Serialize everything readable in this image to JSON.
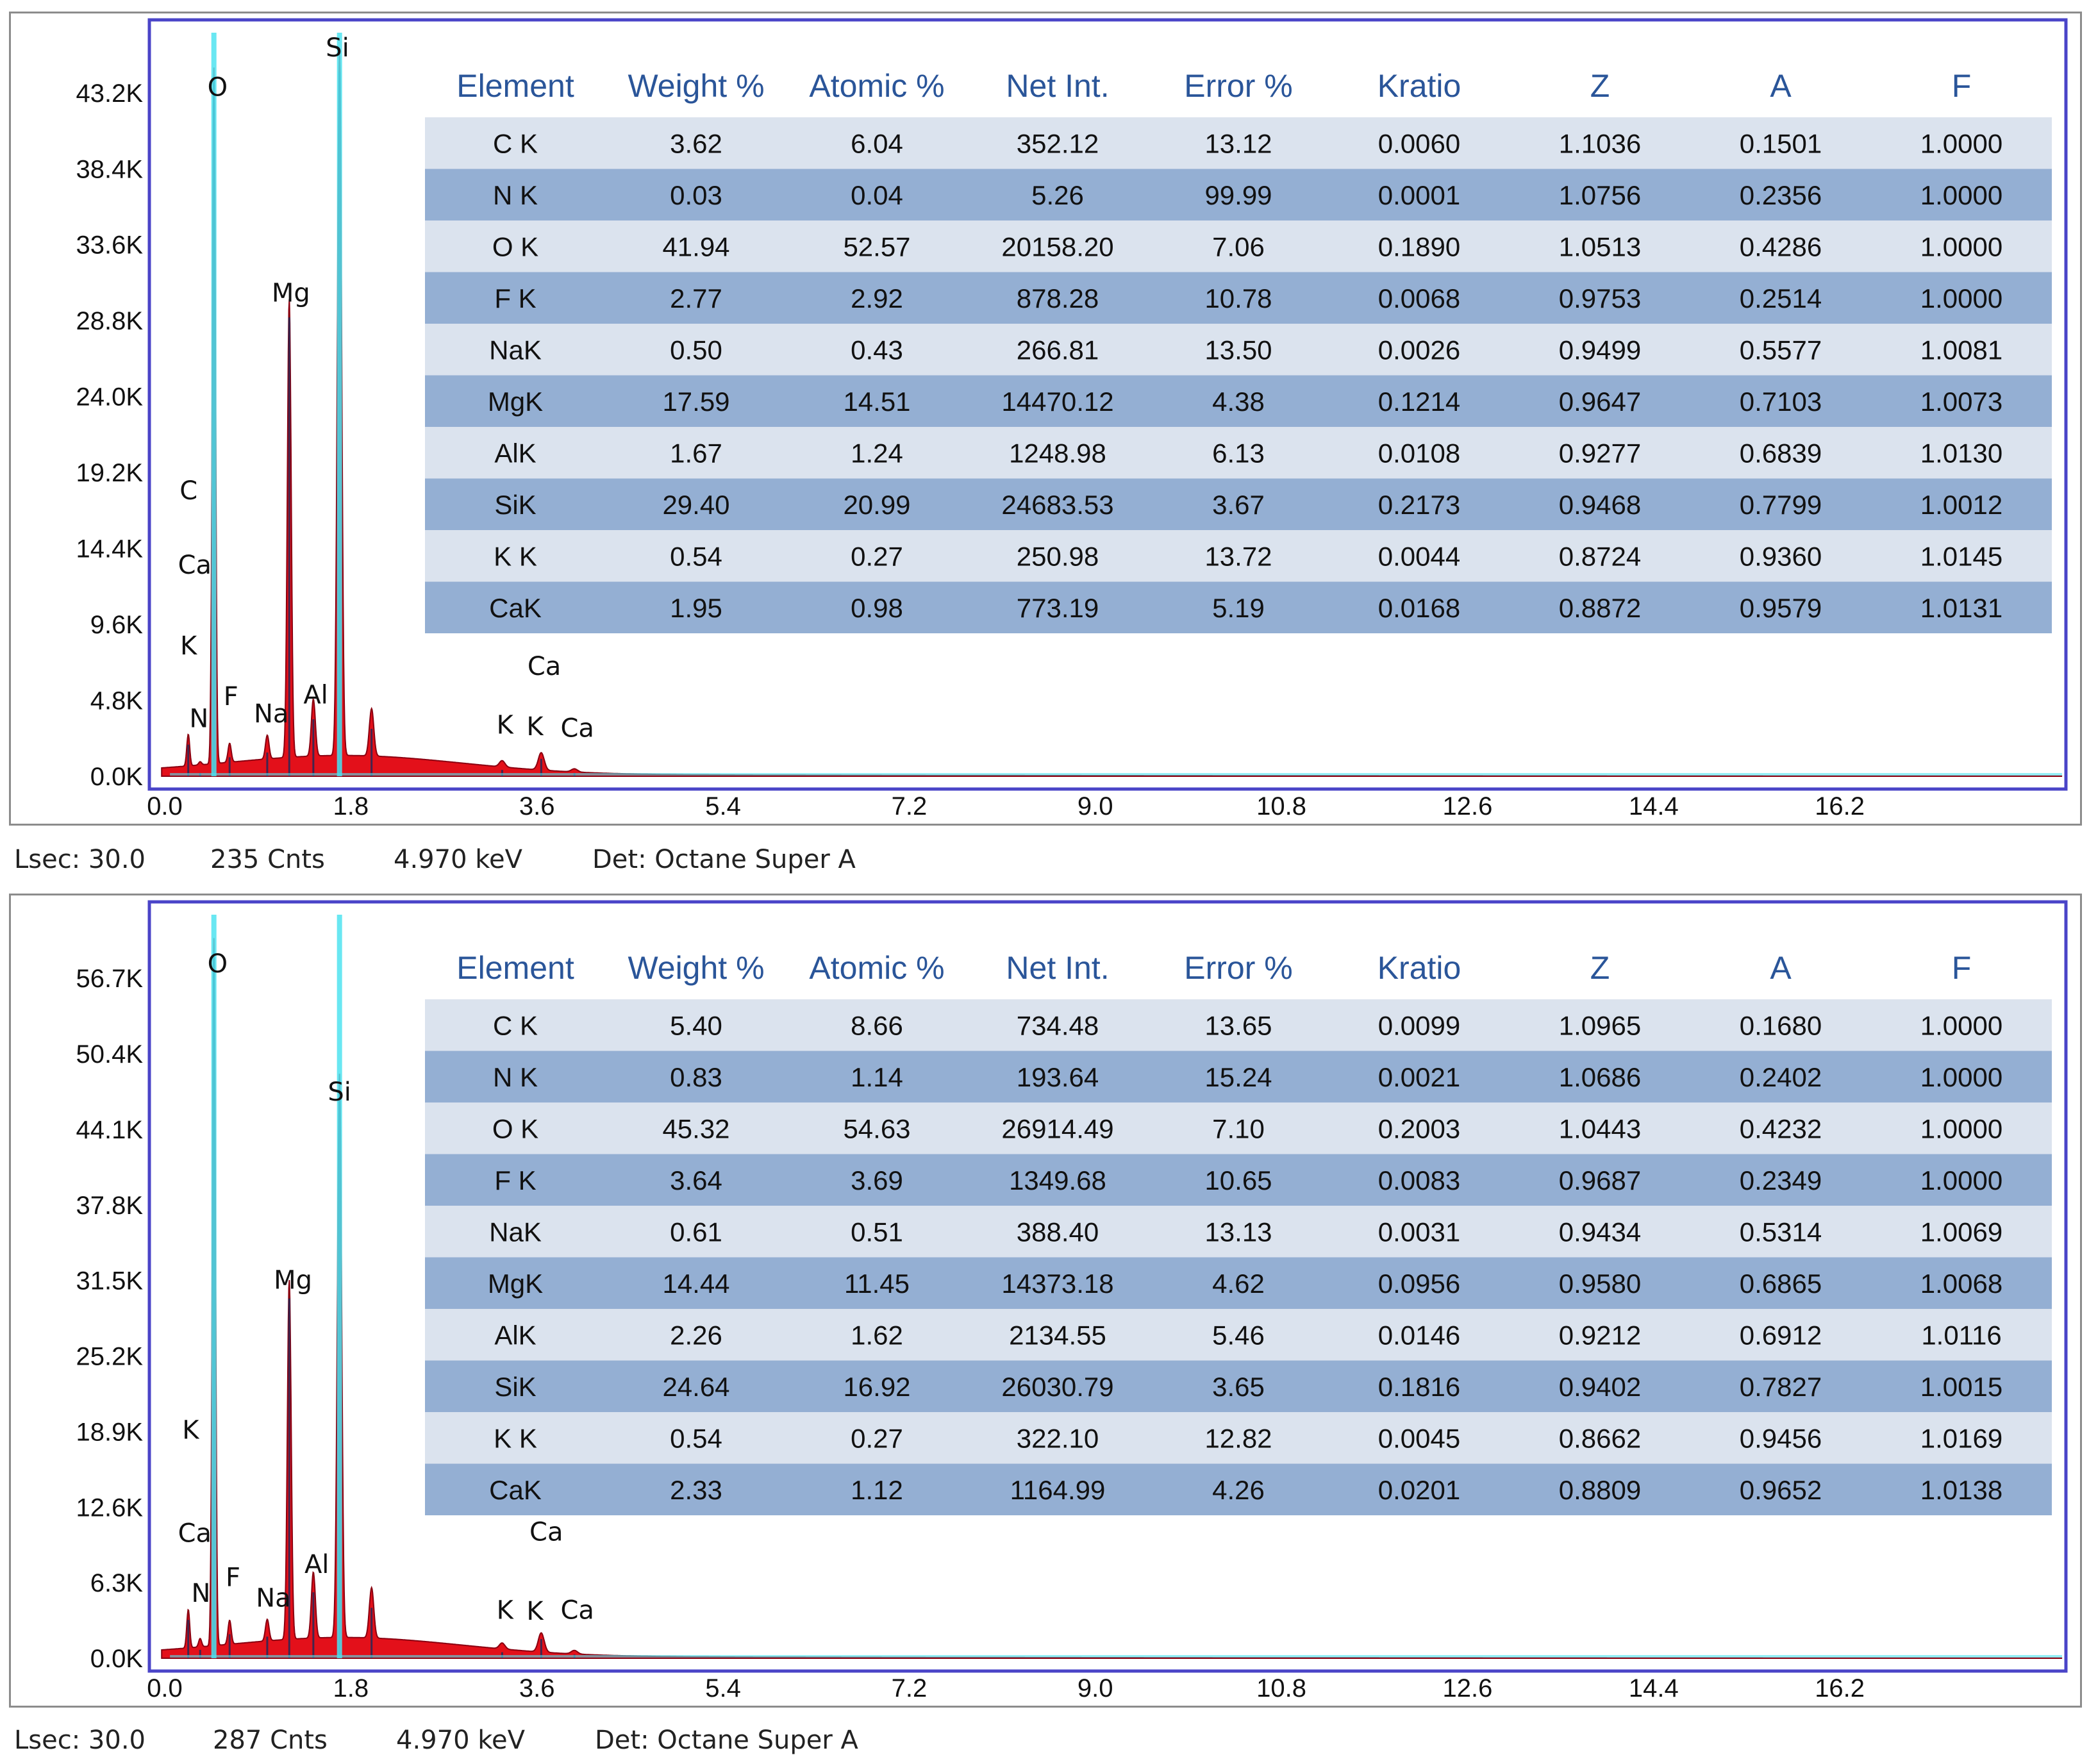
{
  "table_columns": [
    "Element",
    "Weight %",
    "Atomic %",
    "Net Int.",
    "Error %",
    "Kratio",
    "Z",
    "A",
    "F"
  ],
  "colors": {
    "header_text": "#2a5599",
    "row_light": "#dbe3ee",
    "row_dark": "#94afd3",
    "frame": "#4a44c8",
    "peak_fill": "#e3101a",
    "peak_edge": "#8a0010",
    "spectrum_line": "#1c2a5a",
    "marker": "#4fe3f0",
    "background_fill": "#2a3a78"
  },
  "chart_data": [
    {
      "type": "table",
      "title": "",
      "xlabel": "",
      "ylabel": "",
      "x_ticks": [
        "0.0",
        "1.8",
        "3.6",
        "5.4",
        "7.2",
        "9.0",
        "10.8",
        "12.6",
        "14.4",
        "16.2"
      ],
      "y_ticks": [
        "0.0K",
        "4.8K",
        "9.6K",
        "14.4K",
        "19.2K",
        "24.0K",
        "28.8K",
        "33.6K",
        "38.4K",
        "43.2K"
      ],
      "xlim": [
        0,
        18.4
      ],
      "ylim": [
        0,
        47000
      ],
      "grid": false,
      "spectrum_peaks": [
        {
          "element": "C",
          "x": 0.277,
          "y": 2000
        },
        {
          "element": "N",
          "x": 0.392,
          "y": 200
        },
        {
          "element": "O",
          "x": 0.525,
          "y": 44000
        },
        {
          "element": "F",
          "x": 0.677,
          "y": 1200
        },
        {
          "element": "Na",
          "x": 1.041,
          "y": 1500
        },
        {
          "element": "Mg",
          "x": 1.254,
          "y": 29000
        },
        {
          "element": "Al",
          "x": 1.487,
          "y": 3600
        },
        {
          "element": "Si",
          "x": 1.74,
          "y": 44500
        },
        {
          "element": "Si-sum",
          "x": 2.05,
          "y": 3000
        },
        {
          "element": "K",
          "x": 3.313,
          "y": 400
        },
        {
          "element": "Ca",
          "x": 3.691,
          "y": 1100
        },
        {
          "element": "Ca-kb",
          "x": 4.012,
          "y": 200
        }
      ],
      "peak_labels": [
        {
          "text": "O",
          "x": 0.56,
          "y": 43000
        },
        {
          "text": "Si",
          "x": 1.72,
          "y": 45500
        },
        {
          "text": "Mg",
          "x": 1.27,
          "y": 30000
        },
        {
          "text": "C",
          "x": 0.28,
          "y": 17500
        },
        {
          "text": "Ca",
          "x": 0.34,
          "y": 12800
        },
        {
          "text": "K",
          "x": 0.28,
          "y": 7700
        },
        {
          "text": "N",
          "x": 0.38,
          "y": 3100
        },
        {
          "text": "F",
          "x": 0.69,
          "y": 4500
        },
        {
          "text": "Na",
          "x": 1.08,
          "y": 3400
        },
        {
          "text": "Al",
          "x": 1.51,
          "y": 4600
        },
        {
          "text": "Ca",
          "x": 3.72,
          "y": 6400
        },
        {
          "text": "K",
          "x": 3.34,
          "y": 2700
        },
        {
          "text": "K",
          "x": 3.63,
          "y": 2600
        },
        {
          "text": "Ca",
          "x": 4.04,
          "y": 2500
        }
      ],
      "table": [
        [
          "C K",
          "3.62",
          "6.04",
          "352.12",
          "13.12",
          "0.0060",
          "1.1036",
          "0.1501",
          "1.0000"
        ],
        [
          "N K",
          "0.03",
          "0.04",
          "5.26",
          "99.99",
          "0.0001",
          "1.0756",
          "0.2356",
          "1.0000"
        ],
        [
          "O K",
          "41.94",
          "52.57",
          "20158.20",
          "7.06",
          "0.1890",
          "1.0513",
          "0.4286",
          "1.0000"
        ],
        [
          "F K",
          "2.77",
          "2.92",
          "878.28",
          "10.78",
          "0.0068",
          "0.9753",
          "0.2514",
          "1.0000"
        ],
        [
          "NaK",
          "0.50",
          "0.43",
          "266.81",
          "13.50",
          "0.0026",
          "0.9499",
          "0.5577",
          "1.0081"
        ],
        [
          "MgK",
          "17.59",
          "14.51",
          "14470.12",
          "4.38",
          "0.1214",
          "0.9647",
          "0.7103",
          "1.0073"
        ],
        [
          "AlK",
          "1.67",
          "1.24",
          "1248.98",
          "6.13",
          "0.0108",
          "0.9277",
          "0.6839",
          "1.0130"
        ],
        [
          "SiK",
          "29.40",
          "20.99",
          "24683.53",
          "3.67",
          "0.2173",
          "0.9468",
          "0.7799",
          "1.0012"
        ],
        [
          "K K",
          "0.54",
          "0.27",
          "250.98",
          "13.72",
          "0.0044",
          "0.8724",
          "0.9360",
          "1.0145"
        ],
        [
          "CaK",
          "1.95",
          "0.98",
          "773.19",
          "5.19",
          "0.0168",
          "0.8872",
          "0.9579",
          "1.0131"
        ]
      ],
      "status": {
        "lsec": "Lsec: 30.0",
        "cnts": "235 Cnts",
        "kev": "4.970 keV",
        "det": "Det: Octane Super A"
      }
    },
    {
      "type": "table",
      "title": "",
      "xlabel": "",
      "ylabel": "",
      "x_ticks": [
        "0.0",
        "1.8",
        "3.6",
        "5.4",
        "7.2",
        "9.0",
        "10.8",
        "12.6",
        "14.4",
        "16.2"
      ],
      "y_ticks": [
        "0.0K",
        "6.3K",
        "12.6K",
        "18.9K",
        "25.2K",
        "31.5K",
        "37.8K",
        "44.1K",
        "50.4K",
        "56.7K"
      ],
      "xlim": [
        0,
        18.4
      ],
      "ylim": [
        0,
        62000
      ],
      "grid": false,
      "spectrum_peaks": [
        {
          "element": "C",
          "x": 0.277,
          "y": 3200
        },
        {
          "element": "N",
          "x": 0.392,
          "y": 700
        },
        {
          "element": "O",
          "x": 0.525,
          "y": 59000
        },
        {
          "element": "F",
          "x": 0.677,
          "y": 2000
        },
        {
          "element": "Na",
          "x": 1.041,
          "y": 1800
        },
        {
          "element": "Mg",
          "x": 1.254,
          "y": 30000
        },
        {
          "element": "Al",
          "x": 1.487,
          "y": 5500
        },
        {
          "element": "Si",
          "x": 1.74,
          "y": 47000
        },
        {
          "element": "Si-sum",
          "x": 2.05,
          "y": 4200
        },
        {
          "element": "K",
          "x": 3.313,
          "y": 500
        },
        {
          "element": "Ca",
          "x": 3.691,
          "y": 1600
        },
        {
          "element": "Ca-kb",
          "x": 4.012,
          "y": 300
        }
      ],
      "peak_labels": [
        {
          "text": "O",
          "x": 0.56,
          "y": 57200
        },
        {
          "text": "Si",
          "x": 1.74,
          "y": 46500
        },
        {
          "text": "Mg",
          "x": 1.29,
          "y": 30800
        },
        {
          "text": "K",
          "x": 0.3,
          "y": 18300
        },
        {
          "text": "Ca",
          "x": 0.34,
          "y": 9700
        },
        {
          "text": "N",
          "x": 0.4,
          "y": 4700
        },
        {
          "text": "F",
          "x": 0.71,
          "y": 6000
        },
        {
          "text": "Na",
          "x": 1.1,
          "y": 4300
        },
        {
          "text": "Al",
          "x": 1.52,
          "y": 7100
        },
        {
          "text": "Ca",
          "x": 3.74,
          "y": 9800
        },
        {
          "text": "K",
          "x": 3.34,
          "y": 3300
        },
        {
          "text": "K",
          "x": 3.63,
          "y": 3200
        },
        {
          "text": "Ca",
          "x": 4.04,
          "y": 3300
        }
      ],
      "table": [
        [
          "C K",
          "5.40",
          "8.66",
          "734.48",
          "13.65",
          "0.0099",
          "1.0965",
          "0.1680",
          "1.0000"
        ],
        [
          "N K",
          "0.83",
          "1.14",
          "193.64",
          "15.24",
          "0.0021",
          "1.0686",
          "0.2402",
          "1.0000"
        ],
        [
          "O K",
          "45.32",
          "54.63",
          "26914.49",
          "7.10",
          "0.2003",
          "1.0443",
          "0.4232",
          "1.0000"
        ],
        [
          "F K",
          "3.64",
          "3.69",
          "1349.68",
          "10.65",
          "0.0083",
          "0.9687",
          "0.2349",
          "1.0000"
        ],
        [
          "NaK",
          "0.61",
          "0.51",
          "388.40",
          "13.13",
          "0.0031",
          "0.9434",
          "0.5314",
          "1.0069"
        ],
        [
          "MgK",
          "14.44",
          "11.45",
          "14373.18",
          "4.62",
          "0.0956",
          "0.9580",
          "0.6865",
          "1.0068"
        ],
        [
          "AlK",
          "2.26",
          "1.62",
          "2134.55",
          "5.46",
          "0.0146",
          "0.9212",
          "0.6912",
          "1.0116"
        ],
        [
          "SiK",
          "24.64",
          "16.92",
          "26030.79",
          "3.65",
          "0.1816",
          "0.9402",
          "0.7827",
          "1.0015"
        ],
        [
          "K K",
          "0.54",
          "0.27",
          "322.10",
          "12.82",
          "0.0045",
          "0.8662",
          "0.9456",
          "1.0169"
        ],
        [
          "CaK",
          "2.33",
          "1.12",
          "1164.99",
          "4.26",
          "0.0201",
          "0.8809",
          "0.9652",
          "1.0138"
        ]
      ],
      "status": {
        "lsec": "Lsec: 30.0",
        "cnts": "287 Cnts",
        "kev": "4.970 keV",
        "det": "Det: Octane Super A"
      }
    }
  ]
}
